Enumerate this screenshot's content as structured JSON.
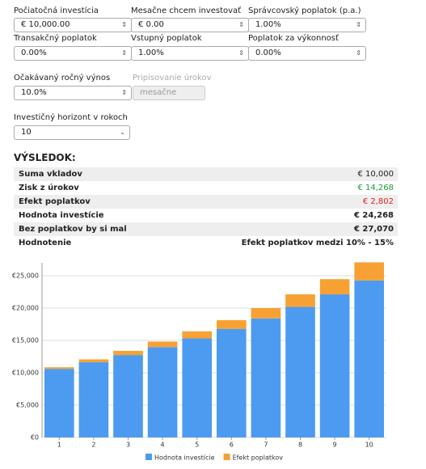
{
  "form": {
    "fields": [
      {
        "label": "Počiatočná investícia",
        "value": "€ 10,000.00"
      },
      {
        "label": "Mesačne chcem investovať",
        "value": "€ 0.00"
      },
      {
        "label": "Správcovský poplatok (p.a.)",
        "value": "1.00%"
      },
      {
        "label": "Transakčný poplatok",
        "value": "0.00%"
      },
      {
        "label": "Vstupný poplatok",
        "value": "1.00%"
      },
      {
        "label": "Poplatok za výkonnosť",
        "value": "0.00%"
      },
      {
        "label": "Očakávaný ročný výnos",
        "value": "10.0%"
      },
      {
        "label": "Pripisovanie úrokov",
        "value": "mesačne"
      },
      {
        "label": "Investičný horizont v rokoch",
        "value": "10"
      }
    ]
  },
  "results": {
    "title": "VÝSLEDOK:",
    "rows": [
      [
        "Suma vkladov",
        "€ 10,000"
      ],
      [
        "Zisk z úrokov",
        "€ 14,268"
      ],
      [
        "Efekt poplatkov",
        "€ 2,802"
      ],
      [
        "Hodnota investície",
        "€ 24,268"
      ],
      [
        "Bez poplatkov by si mal",
        "€ 27,070"
      ],
      [
        "Hodnotenie",
        "Efekt poplatkov medzi 10% - 15%"
      ]
    ]
  },
  "chart_data": {
    "type": "stacked_bar",
    "categories": [
      "1",
      "2",
      "3",
      "4",
      "5",
      "6",
      "7",
      "8",
      "9",
      "10"
    ],
    "series": [
      {
        "name": "Hodnota investície",
        "color": "#4c9bf0",
        "values": [
          10600,
          11620,
          12740,
          13970,
          15310,
          16790,
          18400,
          20180,
          22120,
          24268
        ]
      },
      {
        "name": "Efekt poplatkov",
        "color": "#f7a134",
        "values": [
          250,
          450,
          650,
          850,
          1100,
          1350,
          1600,
          1950,
          2350,
          2802
        ]
      }
    ],
    "ylim": [
      0,
      27000
    ],
    "yticks": [
      {
        "value": 0,
        "label": "€0"
      },
      {
        "value": 5000,
        "label": "€5,000"
      },
      {
        "value": 10000,
        "label": "€10,000"
      },
      {
        "value": 15000,
        "label": "€15,000"
      },
      {
        "value": 20000,
        "label": "€20,000"
      },
      {
        "value": 25000,
        "label": "€25,000"
      }
    ],
    "grid": true,
    "legend": "bottom"
  }
}
